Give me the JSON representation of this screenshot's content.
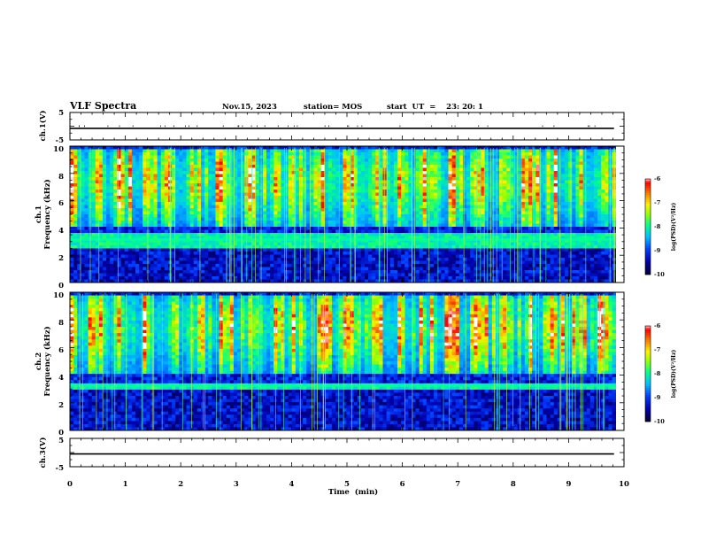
{
  "header": {
    "title": "VLF Spectra",
    "date": "Nov.15, 2023",
    "station": "station= MOS",
    "start": "start  UT  =    23: 20: 1"
  },
  "chart_data": [
    {
      "type": "line",
      "panel": "ch1-waveform",
      "ylabel": "ch.1(V)",
      "ylim": [
        -5,
        5
      ],
      "yticks": [
        "5",
        "-5"
      ],
      "xlim": [
        0,
        10
      ],
      "series": [
        {
          "values_constant": -0.8
        }
      ]
    },
    {
      "type": "heatmap",
      "panel": "ch1-spectrogram",
      "ylabel_line1": "ch.1",
      "ylabel_line2": "Frequency  (kHz)",
      "ylim": [
        0,
        10
      ],
      "yticks": [
        "0",
        "2",
        "4",
        "6",
        "8",
        "10"
      ],
      "xlim": [
        0,
        9.85
      ],
      "colorbar": {
        "label": "log(PSD)(V²/Hz)",
        "range": [
          -10,
          -6
        ],
        "ticks": [
          "-6",
          "-7",
          "-8",
          "-9",
          "-10"
        ]
      },
      "noise_band_khz": [
        2.6,
        3.6
      ],
      "burst_band_khz": [
        4.0,
        9.7
      ]
    },
    {
      "type": "heatmap",
      "panel": "ch2-spectrogram",
      "ylabel_line1": "ch.2",
      "ylabel_line2": "Frequency  (kHz)",
      "ylim": [
        0,
        10
      ],
      "yticks": [
        "0",
        "2",
        "4",
        "6",
        "8",
        "10"
      ],
      "xlim": [
        0,
        9.85
      ],
      "colorbar": {
        "label": "log(PSD)(V²/Hz)",
        "range": [
          -10,
          -6
        ],
        "ticks": [
          "-6",
          "-7",
          "-8",
          "-9",
          "-10"
        ]
      },
      "noise_band_khz": [
        3.0,
        3.4
      ],
      "burst_band_khz": [
        4.0,
        9.8
      ]
    },
    {
      "type": "line",
      "panel": "ch3-waveform",
      "ylabel": "ch.3(V)",
      "ylim": [
        -5,
        5
      ],
      "yticks": [
        "5",
        "-5"
      ],
      "xlim": [
        0,
        10
      ],
      "series": [
        {
          "values_constant": -0.5
        }
      ]
    }
  ],
  "xaxis": {
    "label": "Time  (min)",
    "ticks": [
      "0",
      "1",
      "2",
      "3",
      "4",
      "5",
      "6",
      "7",
      "8",
      "9",
      "10"
    ]
  },
  "colors": {
    "scale": [
      "#000000",
      "#000080",
      "#0000ff",
      "#00c0ff",
      "#00ff80",
      "#c0ff00",
      "#ffff00",
      "#ff8000",
      "#ff0000",
      "#ffffff"
    ]
  }
}
